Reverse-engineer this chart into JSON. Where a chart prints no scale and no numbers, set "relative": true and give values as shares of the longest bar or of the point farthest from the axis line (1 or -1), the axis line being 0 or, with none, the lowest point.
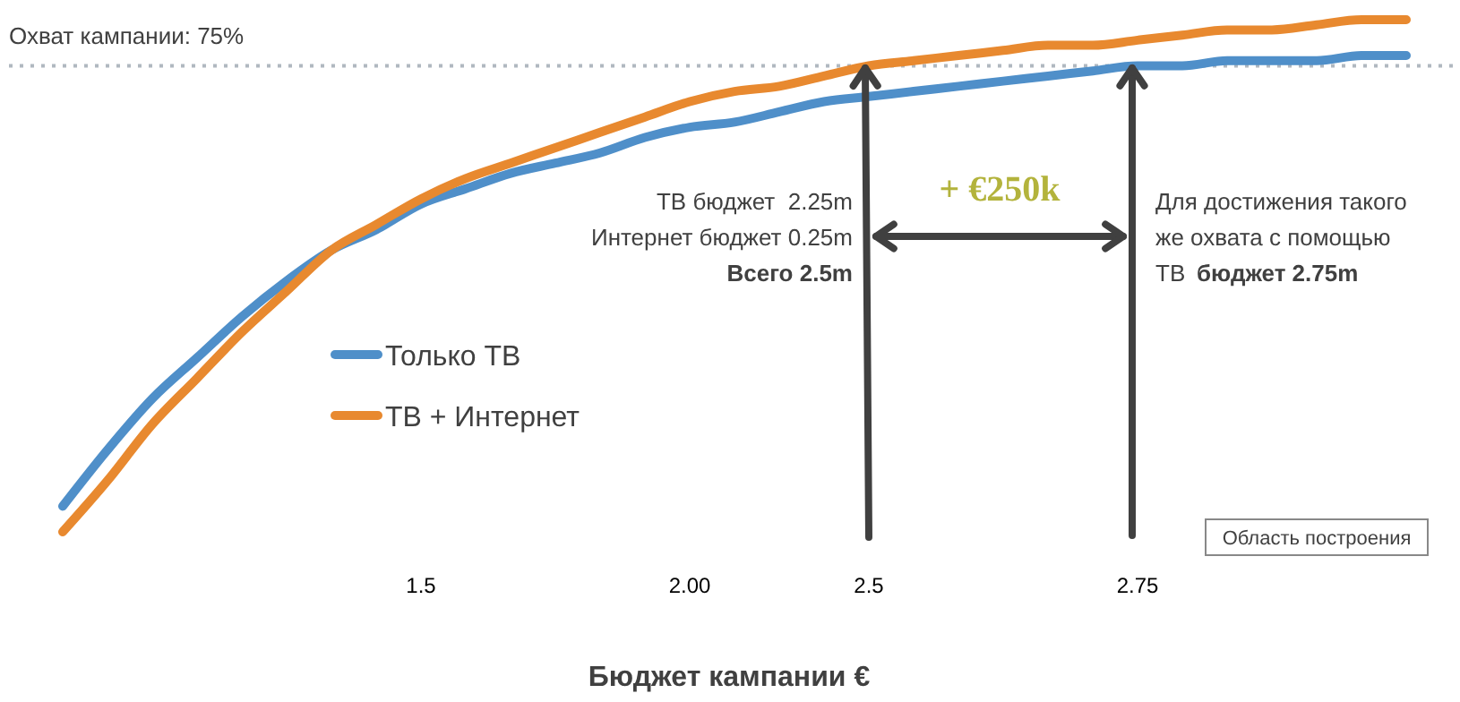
{
  "chart_data": {
    "type": "line",
    "relative": true,
    "xlabel": "Бюджет кампании €",
    "categories": [
      null,
      null,
      null,
      null,
      null,
      null,
      null,
      null,
      "1.5",
      null,
      null,
      null,
      null,
      null,
      "2.00",
      null,
      null,
      null,
      "2.5",
      null,
      null,
      null,
      null,
      null,
      "2.75",
      null,
      null,
      null,
      null,
      null,
      null
    ],
    "series": [
      {
        "name": "Только ТВ",
        "color": "#4f8fc9",
        "values": [
          0.05,
          0.16,
          0.26,
          0.34,
          0.42,
          0.49,
          0.55,
          0.59,
          0.64,
          0.67,
          0.7,
          0.72,
          0.74,
          0.77,
          0.79,
          0.8,
          0.82,
          0.84,
          0.85,
          0.86,
          0.87,
          0.88,
          0.89,
          0.9,
          0.91,
          0.91,
          0.92,
          0.92,
          0.92,
          0.93,
          0.93
        ]
      },
      {
        "name": "ТВ + Интернет",
        "color": "#e8892f",
        "values": [
          0,
          0.1,
          0.21,
          0.3,
          0.39,
          0.47,
          0.55,
          0.6,
          0.65,
          0.69,
          0.72,
          0.75,
          0.78,
          0.81,
          0.84,
          0.86,
          0.87,
          0.89,
          0.91,
          0.92,
          0.93,
          0.94,
          0.95,
          0.95,
          0.96,
          0.97,
          0.98,
          0.98,
          0.99,
          1.0,
          1.0
        ]
      }
    ],
    "ref_lines": [
      {
        "axis": "y",
        "value": 0.91,
        "color": "#b0b8c0",
        "line_style": "dotted"
      }
    ],
    "annotations": [
      "Охват кампании: 75%",
      "ТВ бюджет  2.25m",
      "Интернет бюджет 0.25m",
      "Всего 2.5m",
      "+ €250k",
      "Для достижения такого",
      "же охвата с помощью",
      "ТВ",
      "бюджет 2.75m",
      "Область построения"
    ],
    "legend": "left",
    "marker": "none",
    "line_style": "solid"
  }
}
